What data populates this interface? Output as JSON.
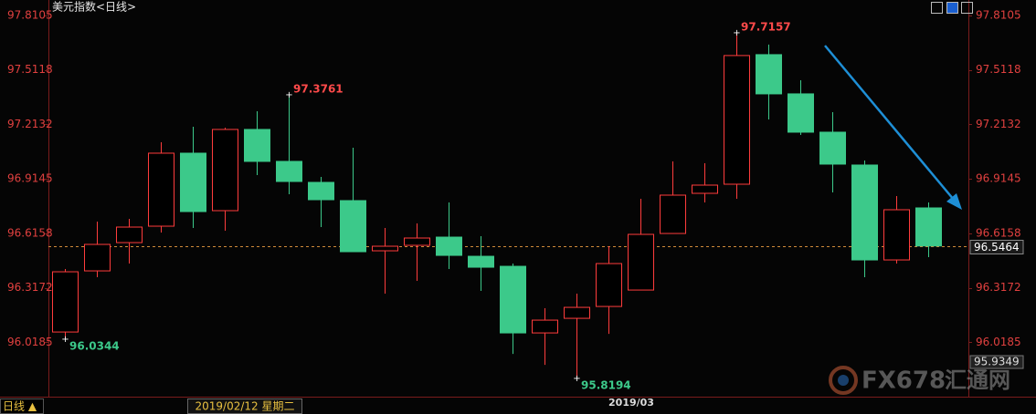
{
  "chart_data": {
    "type": "candlestick",
    "title": "美元指数<日线>",
    "categories": [
      null,
      null,
      null,
      null,
      null,
      null,
      null,
      null,
      null,
      null,
      null,
      null,
      null,
      null,
      null,
      null,
      null,
      null,
      "2019/03",
      null,
      null,
      null,
      null,
      null,
      null,
      null,
      null,
      null
    ],
    "open": [
      96.0746,
      96.4098,
      96.5649,
      96.6549,
      97.0551,
      96.74,
      97.1852,
      97.0101,
      96.895,
      96.795,
      96.5199,
      96.5499,
      96.5949,
      96.4898,
      96.4348,
      96.0696,
      96.1497,
      96.2147,
      96.3047,
      96.6149,
      96.835,
      96.885,
      97.5954,
      97.3803,
      97.1702,
      96.9901,
      96.4698,
      96.755
    ],
    "high": [
      96.4198,
      96.6799,
      96.6949,
      97.1152,
      97.2002,
      97.1952,
      97.2852,
      97.3761,
      96.9251,
      97.0851,
      96.6449,
      96.6699,
      96.785,
      96.5999,
      96.4498,
      96.2047,
      96.2847,
      96.5449,
      96.805,
      97.0101,
      97.0001,
      97.7157,
      97.6504,
      97.4553,
      97.2802,
      97.0151,
      96.82,
      96.785
    ],
    "low": [
      96.0344,
      96.3748,
      96.4498,
      96.6199,
      96.6449,
      96.6299,
      96.9351,
      96.83,
      96.6499,
      96.5149,
      96.2847,
      96.3548,
      96.4198,
      96.2997,
      95.9546,
      95.8945,
      95.8194,
      96.0646,
      96.3047,
      96.6149,
      96.785,
      96.805,
      97.2402,
      97.1552,
      96.84,
      96.3748,
      96.4498,
      96.4848
    ],
    "close": [
      96.4048,
      96.5549,
      96.6499,
      97.0551,
      96.735,
      97.1852,
      97.0101,
      96.9,
      96.8,
      96.5149,
      96.5449,
      96.5899,
      96.4948,
      96.4298,
      96.0696,
      96.1397,
      96.2097,
      96.4498,
      96.6099,
      96.825,
      96.88,
      97.5904,
      97.3803,
      97.1702,
      96.9951,
      96.4698,
      96.745,
      96.5464
    ],
    "up_color": "#ff3c3c",
    "down_color": "#3cc98a",
    "labeled_highs": [
      7,
      21
    ],
    "labeled_lows": [
      0,
      16
    ],
    "ylim": [
      95.72,
      97.87
    ],
    "yticks": [
      97.8105,
      97.5118,
      97.2132,
      96.9145,
      96.6158,
      96.3172,
      96.0185
    ],
    "cursor_value": 95.9349,
    "cursor_date": "2019/02/12 星期二",
    "period_button": "日线 ▲",
    "watermark": {
      "brand": "FX678",
      "name": "汇通网"
    }
  }
}
